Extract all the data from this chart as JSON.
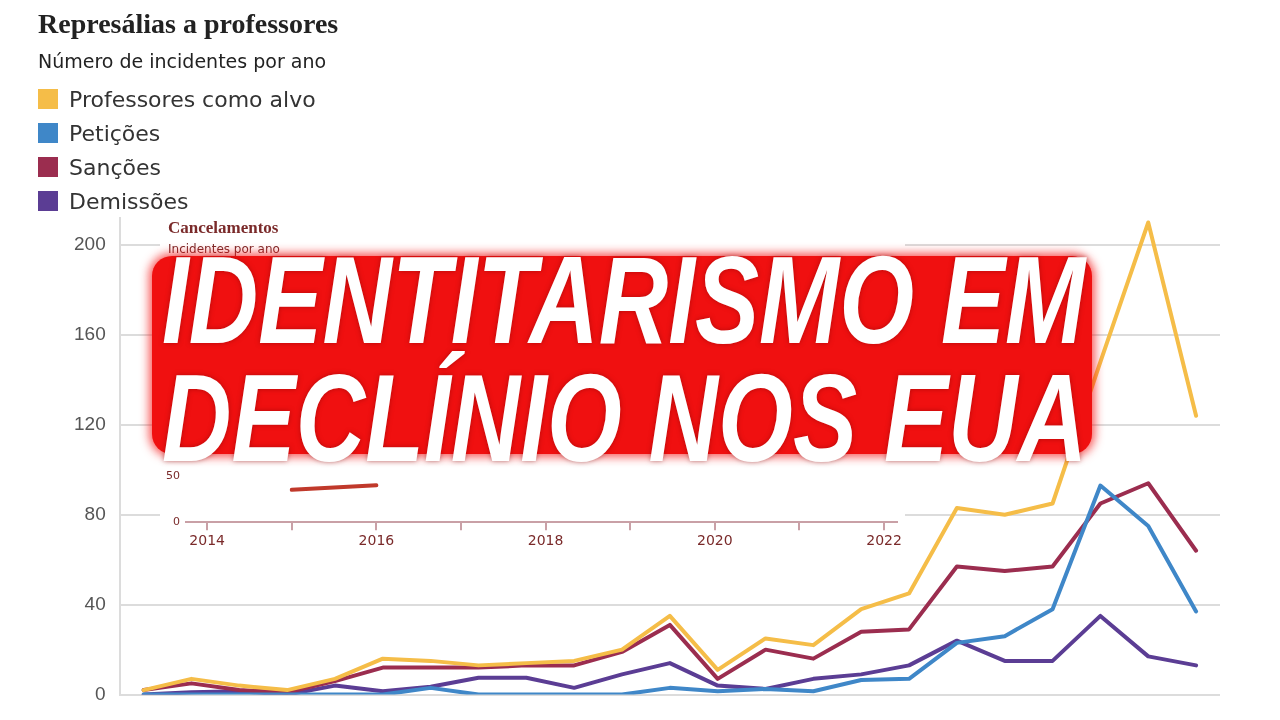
{
  "chart_data": [
    {
      "type": "line",
      "title": "Represálias a professores",
      "subtitle": "Número de incidentes por ano",
      "categories": [
        null,
        null,
        null,
        null,
        null,
        null,
        null,
        null,
        null,
        null,
        null,
        null,
        null,
        null,
        null,
        null,
        null,
        null,
        null,
        null,
        null,
        null,
        null
      ],
      "series": [
        {
          "name": "Professores como alvo",
          "color": "#f5bd48",
          "values": [
            2,
            7,
            4,
            2,
            7,
            16,
            15,
            13,
            14,
            15,
            20,
            35,
            11,
            25,
            22,
            38,
            45,
            83,
            80,
            85,
            148,
            210,
            124
          ]
        },
        {
          "name": "Petições",
          "color": "#3f87c8",
          "values": [
            0,
            0,
            0,
            0,
            0,
            0,
            3,
            0,
            0,
            0,
            0,
            3,
            1.5,
            2.5,
            1.5,
            6.5,
            7,
            23,
            26,
            38,
            93,
            75,
            37
          ]
        },
        {
          "name": "Sanções",
          "color": "#9b2d4f",
          "values": [
            2,
            5,
            2,
            1,
            6,
            12,
            12,
            12,
            13,
            13,
            19,
            31,
            7,
            20,
            16,
            28,
            29,
            57,
            55,
            57,
            85,
            94,
            64
          ]
        },
        {
          "name": "Demissões",
          "color": "#5b3d94",
          "values": [
            0,
            1,
            1.5,
            0,
            4,
            1.5,
            3.5,
            7.5,
            7.5,
            3,
            9,
            14,
            4,
            2.5,
            7,
            9,
            13,
            24,
            15,
            15,
            35,
            17,
            13
          ]
        }
      ],
      "ylim": [
        0,
        212
      ],
      "yticks": [
        0,
        40,
        80,
        120,
        160,
        200
      ],
      "grid": "y",
      "legend": "top left",
      "tick_labels": "y",
      "annotations": [
        "IDENTITARISMO EM DECLÍNIO NOS EUA"
      ]
    },
    {
      "type": "line",
      "title": "Cancelamentos",
      "subtitle": "Incidentes por ano",
      "x": [
        2015,
        2016
      ],
      "series": [
        {
          "color": "#c0392b",
          "values": [
            35,
            40
          ]
        }
      ],
      "xlim": [
        2013.75,
        2022.15
      ],
      "xticks": [
        2014,
        {
          "value": 2015,
          "label": null
        },
        2016,
        {
          "value": 2017,
          "label": null
        },
        2018,
        {
          "value": 2019,
          "label": null
        },
        2020,
        {
          "value": 2021,
          "label": null
        },
        2022
      ],
      "ylim": [
        0,
        50
      ],
      "yticks": [
        0,
        50
      ]
    }
  ]
}
